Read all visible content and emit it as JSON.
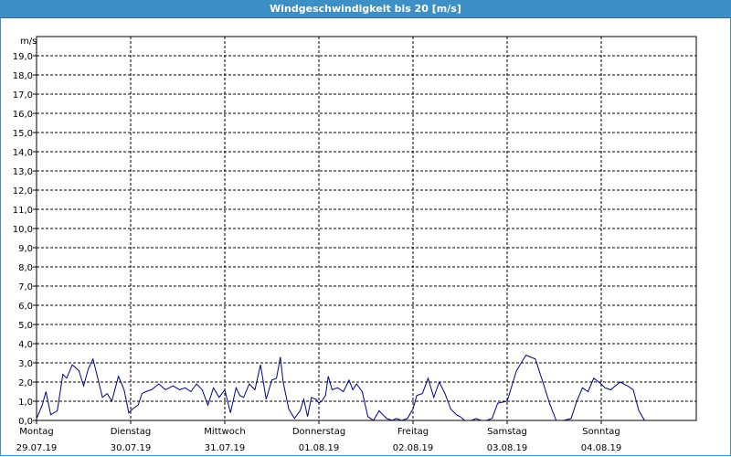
{
  "window": {
    "title": "Windgeschwindigkeit bis 20 [m/s]"
  },
  "colors": {
    "titlebar": "#3d8fc5",
    "series": "#00008b",
    "grid": "#000000"
  },
  "chart_data": {
    "type": "line",
    "title": "Windgeschwindigkeit bis 20 [m/s]",
    "ylabel": "m/s",
    "ylim": [
      0,
      20
    ],
    "xlim": [
      0,
      7
    ],
    "yticks": [
      "0,0",
      "1,0",
      "2,0",
      "3,0",
      "4,0",
      "5,0",
      "6,0",
      "7,0",
      "8,0",
      "9,0",
      "10,0",
      "11,0",
      "12,0",
      "13,0",
      "14,0",
      "15,0",
      "16,0",
      "17,0",
      "18,0",
      "19,0"
    ],
    "day_labels": [
      {
        "day": "Montag",
        "date": "29.07.19"
      },
      {
        "day": "Dienstag",
        "date": "30.07.19"
      },
      {
        "day": "Mittwoch",
        "date": "31.07.19"
      },
      {
        "day": "Donnerstag",
        "date": "01.08.19"
      },
      {
        "day": "Freitag",
        "date": "02.08.19"
      },
      {
        "day": "Samstag",
        "date": "03.08.19"
      },
      {
        "day": "Sonntag",
        "date": "04.08.19"
      }
    ],
    "grid": true,
    "series": [
      {
        "x_unit": "days since Montag 29.07.19 00:00",
        "x": [
          0,
          0.06,
          0.1,
          0.15,
          0.22,
          0.28,
          0.32,
          0.38,
          0.45,
          0.5,
          0.55,
          0.6,
          0.65,
          0.7,
          0.75,
          0.8,
          0.87,
          0.93,
          0.98,
          1.02,
          1.08,
          1.12,
          1.16,
          1.22,
          1.3,
          1.37,
          1.45,
          1.52,
          1.58,
          1.64,
          1.7,
          1.76,
          1.82,
          1.88,
          1.94,
          2.0,
          2.06,
          2.12,
          2.16,
          2.2,
          2.26,
          2.32,
          2.38,
          2.44,
          2.5,
          2.55,
          2.59,
          2.62,
          2.68,
          2.74,
          2.8,
          2.84,
          2.88,
          2.92,
          2.97,
          3.0,
          3.03,
          3.07,
          3.1,
          3.14,
          3.2,
          3.26,
          3.32,
          3.36,
          3.4,
          3.46,
          3.52,
          3.58,
          3.64,
          3.68,
          3.72,
          3.78,
          3.82,
          3.88,
          3.94,
          4.0,
          4.04,
          4.1,
          4.16,
          4.22,
          4.28,
          4.34,
          4.4,
          4.46,
          4.5,
          4.55,
          4.58,
          4.62,
          4.67,
          4.72,
          4.78,
          4.84,
          4.9,
          5.0,
          5.1,
          5.2,
          5.3,
          5.38,
          5.45,
          5.52,
          5.6,
          5.68,
          5.74,
          5.8,
          5.86,
          5.92,
          6.0,
          6.04,
          6.1,
          6.2,
          6.28,
          6.34,
          6.4,
          6.46,
          6.52,
          6.58,
          6.64,
          6.7,
          6.76,
          6.82,
          6.88,
          6.92,
          6.96
        ],
        "values": [
          0.1,
          0.8,
          1.5,
          0.3,
          0.5,
          2.4,
          2.2,
          2.9,
          2.6,
          1.8,
          2.7,
          3.2,
          2.2,
          1.2,
          1.4,
          1.0,
          2.3,
          1.6,
          0.4,
          0.6,
          0.8,
          1.4,
          1.5,
          1.6,
          1.9,
          1.6,
          1.8,
          1.6,
          1.7,
          1.5,
          1.9,
          1.6,
          0.8,
          1.7,
          1.2,
          1.6,
          0.4,
          1.7,
          1.3,
          1.2,
          1.9,
          1.6,
          2.9,
          1.1,
          2.1,
          2.2,
          3.3,
          2.0,
          0.6,
          0.1,
          0.5,
          1.1,
          0.2,
          1.2,
          1.1,
          0.9,
          1.0,
          1.3,
          2.3,
          1.6,
          1.7,
          1.5,
          2.1,
          1.6,
          1.9,
          1.5,
          0.2,
          0.0,
          0.5,
          0.3,
          0.1,
          0.0,
          0.1,
          0.0,
          0.1,
          0.6,
          1.3,
          1.4,
          2.2,
          1.2,
          2.0,
          1.4,
          0.6,
          0.3,
          0.2,
          0.0,
          0.0,
          0.0,
          0.1,
          0.0,
          0.0,
          0.1,
          0.9,
          1.0,
          2.6,
          3.4,
          3.2,
          2.0,
          0.9,
          0.0,
          0.0,
          0.1,
          1.0,
          1.7,
          1.5,
          2.2,
          1.9,
          1.7,
          1.6,
          2.0,
          1.8,
          1.6,
          0.5,
          0.0,
          0.0,
          0.0,
          0.0,
          0.0,
          0.0,
          0.0,
          0.0,
          0.0,
          0.0
        ]
      }
    ]
  }
}
